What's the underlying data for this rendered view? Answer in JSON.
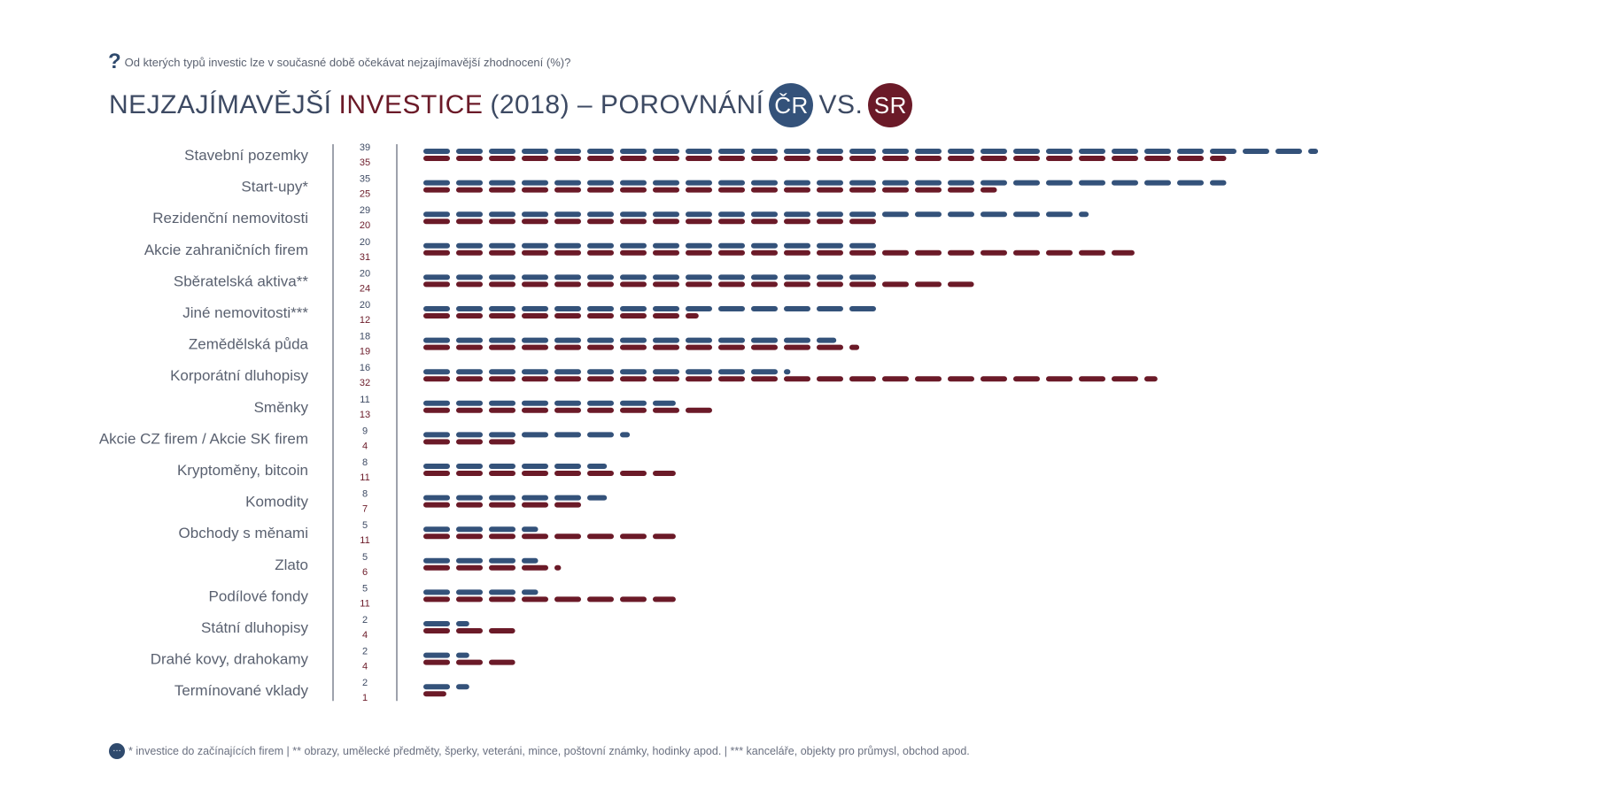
{
  "header": {
    "question": "Od kterých typů investic lze v současné době očekávat nejzajímavější zhodnocení (%)?",
    "title_part1": "NEJZAJÍMAVĚJŠÍ",
    "title_part2": "INVESTICE",
    "title_part3": "(2018) – POROVNÁNÍ",
    "badge_cz": "ČR",
    "vs": "VS.",
    "badge_sk": "SR"
  },
  "footer": {
    "note": "* investice do začínajících firem  |  ** obrazy, umělecké předměty, šperky, veteráni, mince, poštovní známky, hodinky apod.  |  *** kanceláře, objekty pro průmysl, obchod apod."
  },
  "colors": {
    "cz": "#34527a",
    "sk": "#6b1a28"
  },
  "chart_data": {
    "type": "bar",
    "orientation": "horizontal",
    "title": "NEJZAJÍMAVĚJŠÍ INVESTICE (2018) – POROVNÁNÍ ČR VS. SR",
    "categories": [
      "Stavební pozemky",
      "Start-upy*",
      "Rezidenční nemovitosti",
      "Akcie zahraničních firem",
      "Sběratelská aktiva**",
      "Jiné nemovitosti***",
      "Zemědělská půda",
      "Korporátní dluhopisy",
      "Směnky",
      "Akcie CZ firem / Akcie SK firem",
      "Kryptoměny, bitcoin",
      "Komodity",
      "Obchody s měnami",
      "Zlato",
      "Podílové fondy",
      "Státní dluhopisy",
      "Drahé kovy, drahokamy",
      "Termínované vklady"
    ],
    "series": [
      {
        "name": "ČR",
        "values": [
          39,
          35,
          29,
          20,
          20,
          20,
          18,
          16,
          11,
          9,
          8,
          8,
          5,
          5,
          5,
          2,
          2,
          2
        ]
      },
      {
        "name": "SR",
        "values": [
          35,
          25,
          20,
          31,
          24,
          12,
          19,
          32,
          13,
          4,
          11,
          7,
          11,
          6,
          11,
          4,
          4,
          1
        ]
      }
    ],
    "xlim": [
      0,
      40
    ],
    "unit": "%"
  }
}
